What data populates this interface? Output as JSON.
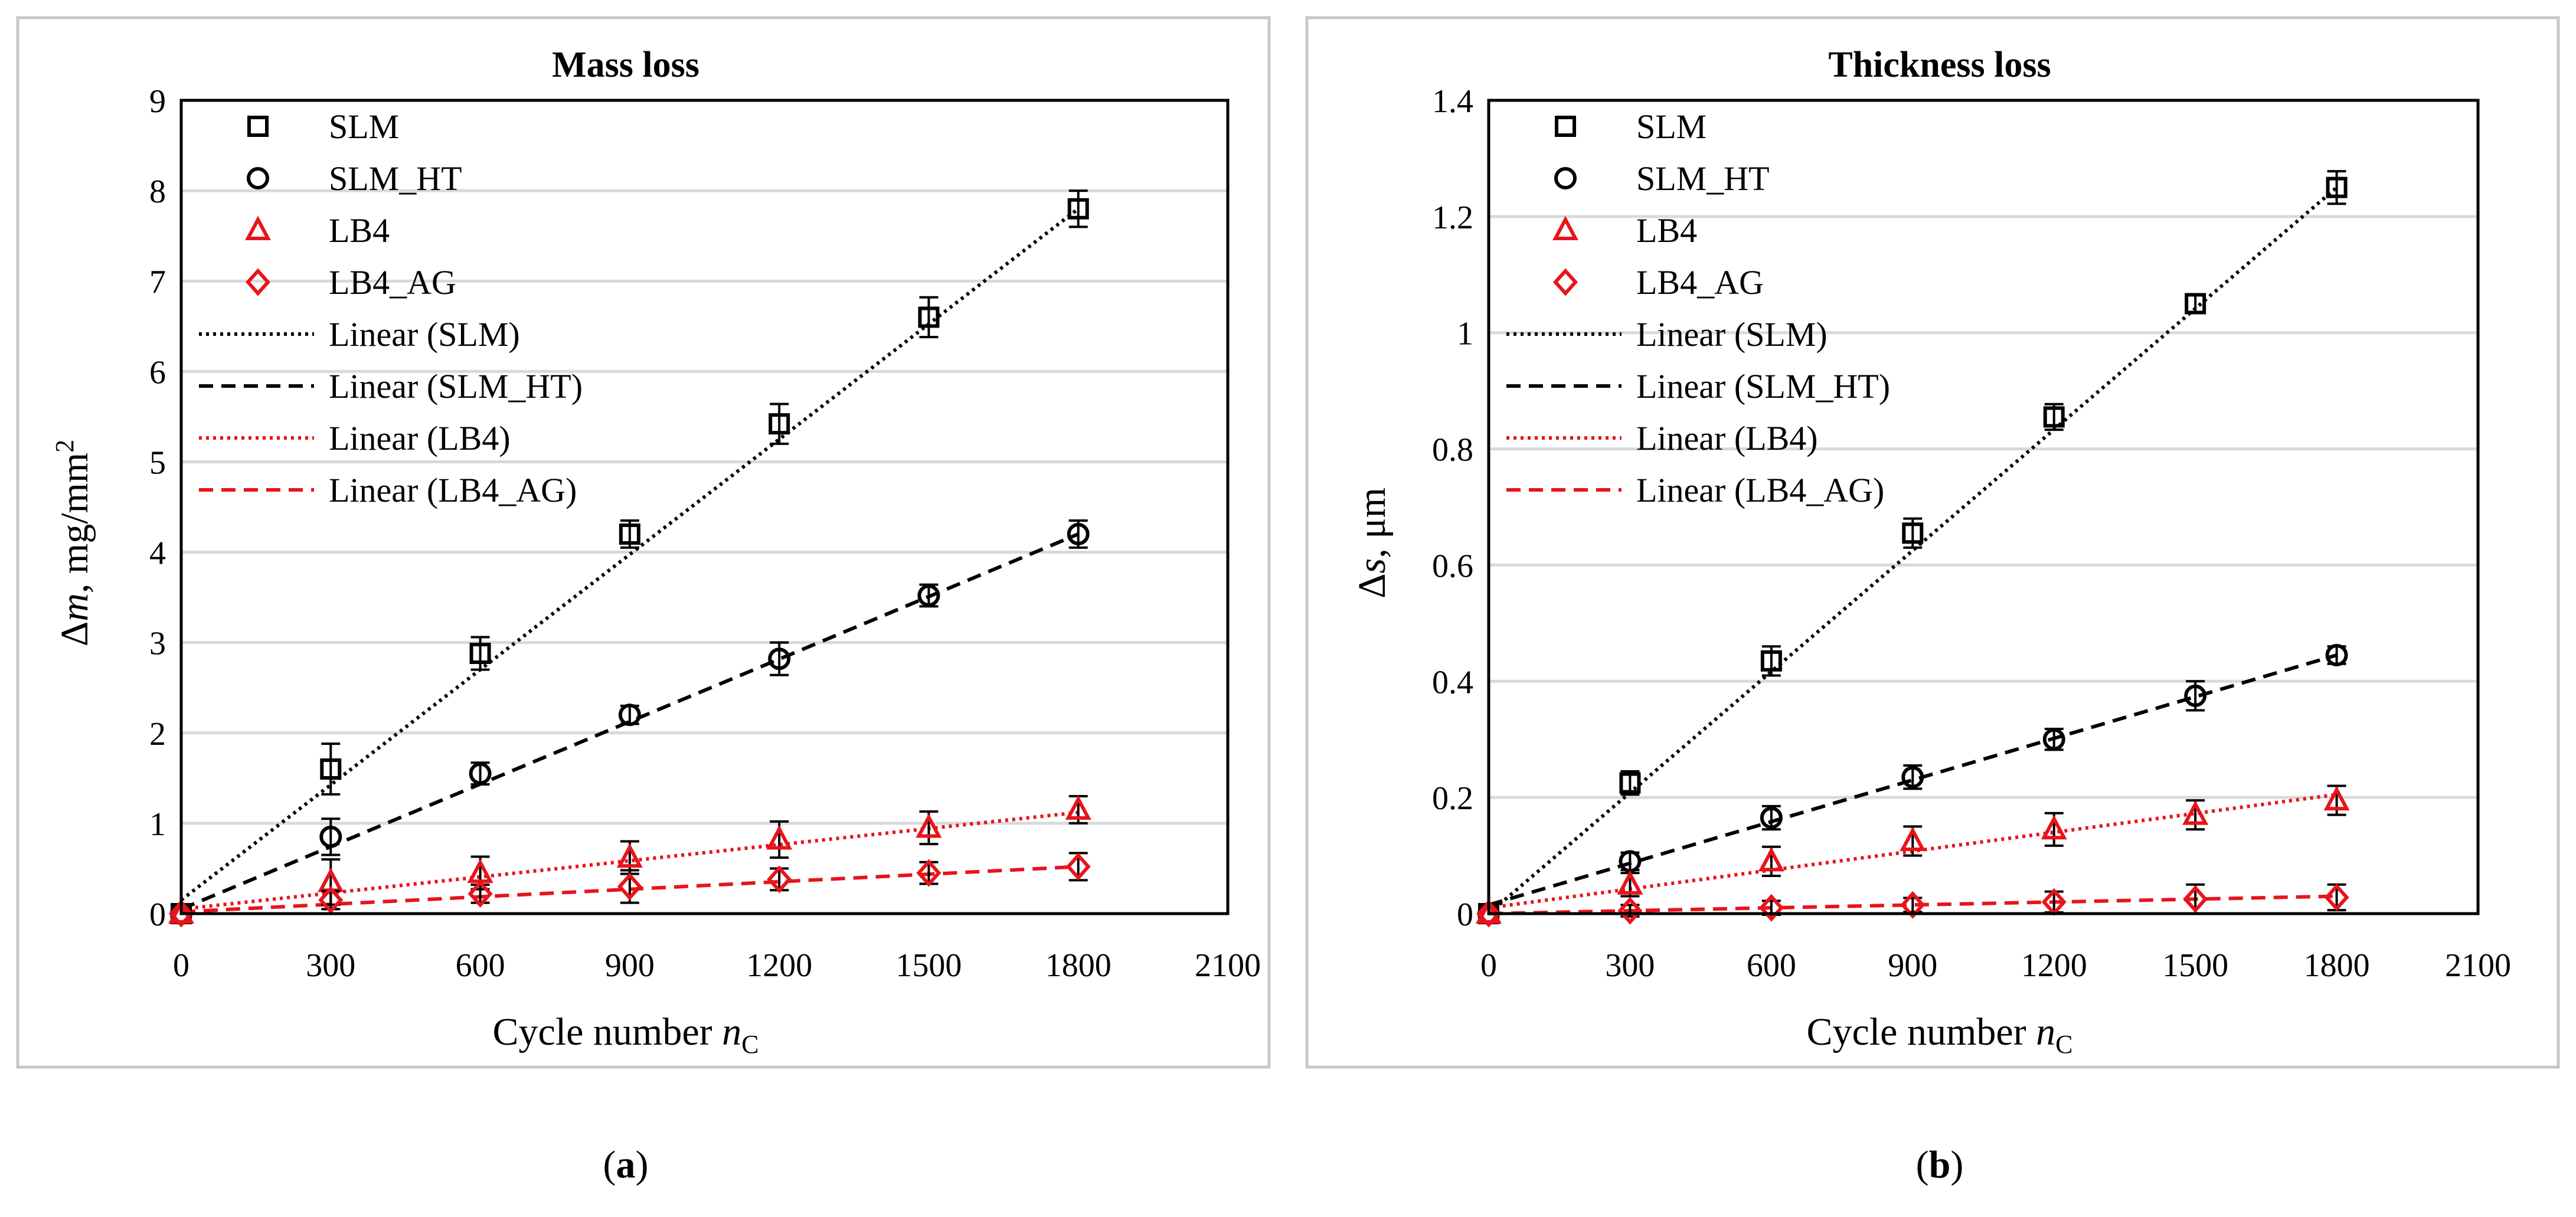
{
  "chart_data": [
    {
      "type": "scatter",
      "title": "Mass loss",
      "xlabel": "Cycle number",
      "xlabel_var": "n",
      "xlabel_sub": "C",
      "ylabel_delta": "Δ",
      "ylabel_var": "m",
      "ylabel_unit": ", mg/mm",
      "ylabel_sup": "2",
      "xlim": [
        0,
        2100
      ],
      "ylim": [
        0,
        9
      ],
      "xticks": [
        "0",
        "300",
        "600",
        "900",
        "1200",
        "1500",
        "1800",
        "2100"
      ],
      "yticks": [
        "0",
        "1",
        "2",
        "3",
        "4",
        "5",
        "6",
        "7",
        "8",
        "9"
      ],
      "grid": "horizontal",
      "legend_position": "top-left",
      "panel_label": "a",
      "x": [
        0,
        300,
        600,
        900,
        1200,
        1500,
        1800
      ],
      "series": [
        {
          "name": "SLM",
          "marker": "square",
          "color": "#000000",
          "values": [
            0,
            1.6,
            2.88,
            4.2,
            5.42,
            6.6,
            7.8
          ],
          "errors": [
            0,
            0.28,
            0.18,
            0.15,
            0.22,
            0.22,
            0.2
          ]
        },
        {
          "name": "SLM_HT",
          "marker": "circle",
          "color": "#000000",
          "values": [
            0,
            0.85,
            1.55,
            2.2,
            2.82,
            3.52,
            4.2
          ],
          "errors": [
            0,
            0.2,
            0.12,
            0.1,
            0.18,
            0.12,
            0.15
          ]
        },
        {
          "name": "LB4",
          "marker": "triangle",
          "color": "#e8141b",
          "values": [
            0,
            0.35,
            0.45,
            0.62,
            0.82,
            0.95,
            1.15
          ],
          "errors": [
            0,
            0.25,
            0.18,
            0.18,
            0.2,
            0.18,
            0.15
          ]
        },
        {
          "name": "LB4_AG",
          "marker": "diamond",
          "color": "#e8141b",
          "values": [
            0,
            0.15,
            0.22,
            0.3,
            0.38,
            0.45,
            0.52
          ],
          "errors": [
            0,
            0.1,
            0.1,
            0.18,
            0.12,
            0.12,
            0.15
          ]
        }
      ],
      "trendlines": [
        {
          "name": "Linear (SLM)",
          "style": "dotted",
          "color": "#000000",
          "start": [
            0,
            0.15
          ],
          "end": [
            1800,
            7.8
          ]
        },
        {
          "name": "Linear (SLM_HT)",
          "style": "dashed",
          "color": "#000000",
          "start": [
            0,
            0.05
          ],
          "end": [
            1800,
            4.2
          ]
        },
        {
          "name": "Linear (LB4)",
          "style": "dotted",
          "color": "#e8141b",
          "start": [
            0,
            0.05
          ],
          "end": [
            1800,
            1.12
          ]
        },
        {
          "name": "Linear (LB4_AG)",
          "style": "dashed",
          "color": "#e8141b",
          "start": [
            0,
            0.02
          ],
          "end": [
            1800,
            0.52
          ]
        }
      ]
    },
    {
      "type": "scatter",
      "title": "Thickness loss",
      "xlabel": "Cycle number",
      "xlabel_var": "n",
      "xlabel_sub": "C",
      "ylabel_delta": "Δ",
      "ylabel_var": "s",
      "ylabel_unit": ", μm",
      "ylabel_sup": "",
      "xlim": [
        0,
        2100
      ],
      "ylim": [
        0,
        1.4
      ],
      "xticks": [
        "0",
        "300",
        "600",
        "900",
        "1200",
        "1500",
        "1800",
        "2100"
      ],
      "yticks": [
        "0",
        "0.2",
        "0.4",
        "0.6",
        "0.8",
        "1",
        "1.2",
        "1.4"
      ],
      "grid": "horizontal",
      "legend_position": "top-left",
      "panel_label": "b",
      "x": [
        0,
        300,
        600,
        900,
        1200,
        1500,
        1800
      ],
      "series": [
        {
          "name": "SLM",
          "marker": "square",
          "color": "#000000",
          "values": [
            0,
            0.225,
            0.435,
            0.655,
            0.855,
            1.05,
            1.25
          ],
          "errors": [
            0,
            0.02,
            0.025,
            0.025,
            0.022,
            0.015,
            0.028
          ]
        },
        {
          "name": "SLM_HT",
          "marker": "circle",
          "color": "#000000",
          "values": [
            0,
            0.09,
            0.165,
            0.235,
            0.3,
            0.375,
            0.445
          ],
          "errors": [
            0,
            0.015,
            0.02,
            0.02,
            0.018,
            0.025,
            0.015
          ]
        },
        {
          "name": "LB4",
          "marker": "triangle",
          "color": "#e8141b",
          "values": [
            0,
            0.05,
            0.09,
            0.125,
            0.145,
            0.17,
            0.195
          ],
          "errors": [
            0,
            0.02,
            0.025,
            0.025,
            0.028,
            0.025,
            0.025
          ]
        },
        {
          "name": "LB4_AG",
          "marker": "diamond",
          "color": "#e8141b",
          "values": [
            0,
            0.005,
            0.01,
            0.015,
            0.02,
            0.025,
            0.028
          ],
          "errors": [
            0,
            0.01,
            0.012,
            0.012,
            0.018,
            0.025,
            0.022
          ]
        }
      ],
      "trendlines": [
        {
          "name": "Linear (SLM)",
          "style": "dotted",
          "color": "#000000",
          "start": [
            0,
            0.0
          ],
          "end": [
            1800,
            1.25
          ]
        },
        {
          "name": "Linear (SLM_HT)",
          "style": "dashed",
          "color": "#000000",
          "start": [
            0,
            0.015
          ],
          "end": [
            1800,
            0.445
          ]
        },
        {
          "name": "Linear (LB4)",
          "style": "dotted",
          "color": "#e8141b",
          "start": [
            0,
            0.01
          ],
          "end": [
            1800,
            0.205
          ]
        },
        {
          "name": "Linear (LB4_AG)",
          "style": "dashed",
          "color": "#e8141b",
          "start": [
            0,
            0.0
          ],
          "end": [
            1800,
            0.03
          ]
        }
      ]
    }
  ]
}
